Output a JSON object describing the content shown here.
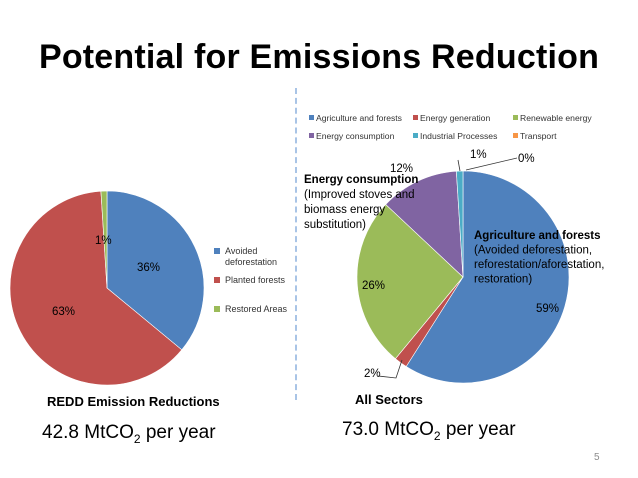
{
  "slide": {
    "title": "Potential for Emissions Reduction",
    "page_number": "5"
  },
  "left": {
    "subtitle": "REDD Emission Reductions",
    "total_value": "42.8 MtCO",
    "total_sub": "2",
    "total_unit": " per year"
  },
  "right": {
    "subtitle": "All Sectors",
    "total_value": "73.0 MtCO",
    "total_sub": "2",
    "total_unit": " per year",
    "callouts": {
      "energy_consumption": {
        "heading": "Energy consumption",
        "lines": [
          "(Improved stoves and",
          "biomass energy",
          "substitution)"
        ]
      },
      "agriculture_forests": {
        "heading": "Agriculture and forests",
        "lines": [
          "(Avoided deforestation,",
          "reforestation/aforestation,",
          "restoration)"
        ]
      }
    }
  },
  "chart_data": [
    {
      "type": "pie",
      "title": "REDD Emission Reductions",
      "legend_position": "right",
      "series": [
        {
          "categories": [
            "Avoided deforestation",
            "Planted forests",
            "Restored Areas"
          ],
          "values": [
            36,
            63,
            1
          ],
          "labels": [
            "36%",
            "63%",
            "1%"
          ],
          "colors": [
            "#4f81bd",
            "#c0504d",
            "#9bbb59"
          ]
        }
      ]
    },
    {
      "type": "pie",
      "title": "All Sectors",
      "legend_position": "top",
      "series": [
        {
          "categories": [
            "Agriculture and forests",
            "Energy generation",
            "Renewable energy",
            "Energy consumption",
            "Industrial Processes",
            "Transport"
          ],
          "values": [
            59,
            2,
            26,
            12,
            1,
            0
          ],
          "labels": [
            "59%",
            "2%",
            "26%",
            "12%",
            "1%",
            "0%"
          ],
          "colors": [
            "#4f81bd",
            "#c0504d",
            "#9bbb59",
            "#8064a2",
            "#4bacc6",
            "#f79646"
          ]
        }
      ]
    }
  ]
}
